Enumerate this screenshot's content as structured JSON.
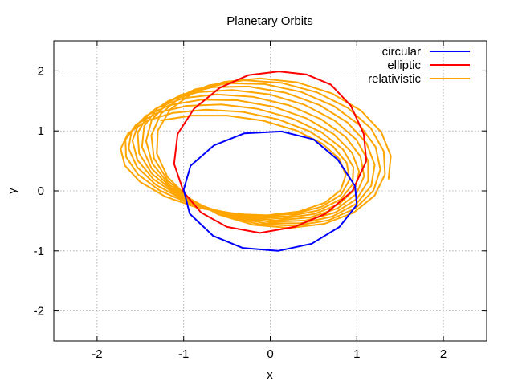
{
  "chart_data": {
    "type": "line",
    "title": "Planetary Orbits",
    "xlabel": "x",
    "ylabel": "y",
    "xlim": [
      -2.5,
      2.5
    ],
    "ylim": [
      -2.5,
      2.5
    ],
    "xticks": [
      -2,
      -1,
      0,
      1,
      2
    ],
    "yticks": [
      -2,
      -1,
      0,
      1,
      2
    ],
    "xtick_labels": [
      "-2",
      "-1",
      "0",
      "1",
      "2"
    ],
    "ytick_labels": [
      "-2",
      "-1",
      "0",
      "1",
      "2"
    ],
    "grid": true,
    "legend_position": "top-right",
    "series": [
      {
        "name": "circular",
        "color": "#0000ff",
        "points": [
          [
            1.0,
            -0.23
          ],
          [
            0.98,
            0.08
          ],
          [
            0.78,
            0.52
          ],
          [
            0.5,
            0.86
          ],
          [
            0.13,
            0.99
          ],
          [
            -0.3,
            0.96
          ],
          [
            -0.65,
            0.76
          ],
          [
            -0.92,
            0.42
          ],
          [
            -1.0,
            0.02
          ],
          [
            -0.93,
            -0.38
          ],
          [
            -0.66,
            -0.75
          ],
          [
            -0.32,
            -0.95
          ],
          [
            0.09,
            -1.0
          ],
          [
            0.48,
            -0.88
          ],
          [
            0.8,
            -0.6
          ],
          [
            1.0,
            -0.23
          ]
        ]
      },
      {
        "name": "elliptic",
        "color": "#ff0000",
        "points": [
          [
            1.11,
            0.5
          ],
          [
            1.08,
            0.95
          ],
          [
            0.93,
            1.42
          ],
          [
            0.7,
            1.77
          ],
          [
            0.42,
            1.94
          ],
          [
            0.1,
            1.99
          ],
          [
            -0.25,
            1.93
          ],
          [
            -0.58,
            1.72
          ],
          [
            -0.88,
            1.37
          ],
          [
            -1.07,
            0.95
          ],
          [
            -1.11,
            0.45
          ],
          [
            -1.0,
            -0.02
          ],
          [
            -0.8,
            -0.36
          ],
          [
            -0.5,
            -0.6
          ],
          [
            -0.12,
            -0.7
          ],
          [
            0.28,
            -0.6
          ],
          [
            0.64,
            -0.38
          ],
          [
            0.95,
            0.0
          ],
          [
            1.11,
            0.5
          ]
        ]
      },
      {
        "name": "relativistic",
        "color": "#ffa500",
        "orbit": {
          "a": 1.35,
          "b": 1.33,
          "center": [
            0.05,
            0.62
          ],
          "tilt_deg": 18,
          "phase_start_deg": -30,
          "phase_end_deg": 3300,
          "step_deg": 18,
          "precession_per_rev_deg": 5.6
        }
      }
    ]
  }
}
